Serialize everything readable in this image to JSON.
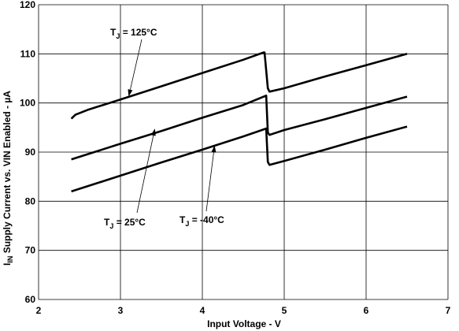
{
  "chart_data": {
    "type": "line",
    "xlabel": "Input Voltage - V",
    "ylabel": {
      "main": "I",
      "sub": "IN",
      "rest": " Supply Current vs. VIN Enabled - µA"
    },
    "xlim": [
      2,
      7
    ],
    "ylim": [
      60,
      120
    ],
    "xticks": [
      2,
      3,
      4,
      5,
      6,
      7
    ],
    "yticks": [
      60,
      70,
      80,
      90,
      100,
      110,
      120
    ],
    "grid": true,
    "series": [
      {
        "label": {
          "main": "T",
          "sub": "J",
          "rest": " = 125°C"
        },
        "x": [
          2.4,
          2.45,
          2.6,
          3.0,
          3.5,
          4.0,
          4.5,
          4.75,
          4.76,
          4.8,
          4.82,
          5.0,
          5.5,
          6.0,
          6.5
        ],
        "y": [
          96.8,
          97.6,
          98.6,
          100.7,
          103.4,
          106.1,
          108.8,
          110.3,
          110.3,
          103.0,
          102.3,
          103.0,
          105.4,
          107.7,
          110.0
        ]
      },
      {
        "label": {
          "main": "T",
          "sub": "J",
          "rest": " = 25°C"
        },
        "x": [
          2.4,
          3.0,
          3.5,
          4.0,
          4.5,
          4.78,
          4.8,
          4.82,
          5.0,
          5.5,
          6.0,
          6.5
        ],
        "y": [
          88.5,
          91.7,
          94.3,
          97.0,
          99.6,
          101.5,
          94.0,
          93.5,
          94.5,
          96.7,
          99.0,
          101.3
        ]
      },
      {
        "label": {
          "main": "T",
          "sub": "J",
          "rest": " = -40°C"
        },
        "x": [
          2.4,
          3.0,
          3.5,
          4.0,
          4.5,
          4.78,
          4.8,
          4.82,
          5.0,
          5.5,
          6.0,
          6.5
        ],
        "y": [
          82.0,
          85.2,
          87.9,
          90.5,
          93.2,
          94.8,
          88.0,
          87.4,
          88.2,
          90.5,
          92.9,
          95.2
        ]
      }
    ]
  }
}
